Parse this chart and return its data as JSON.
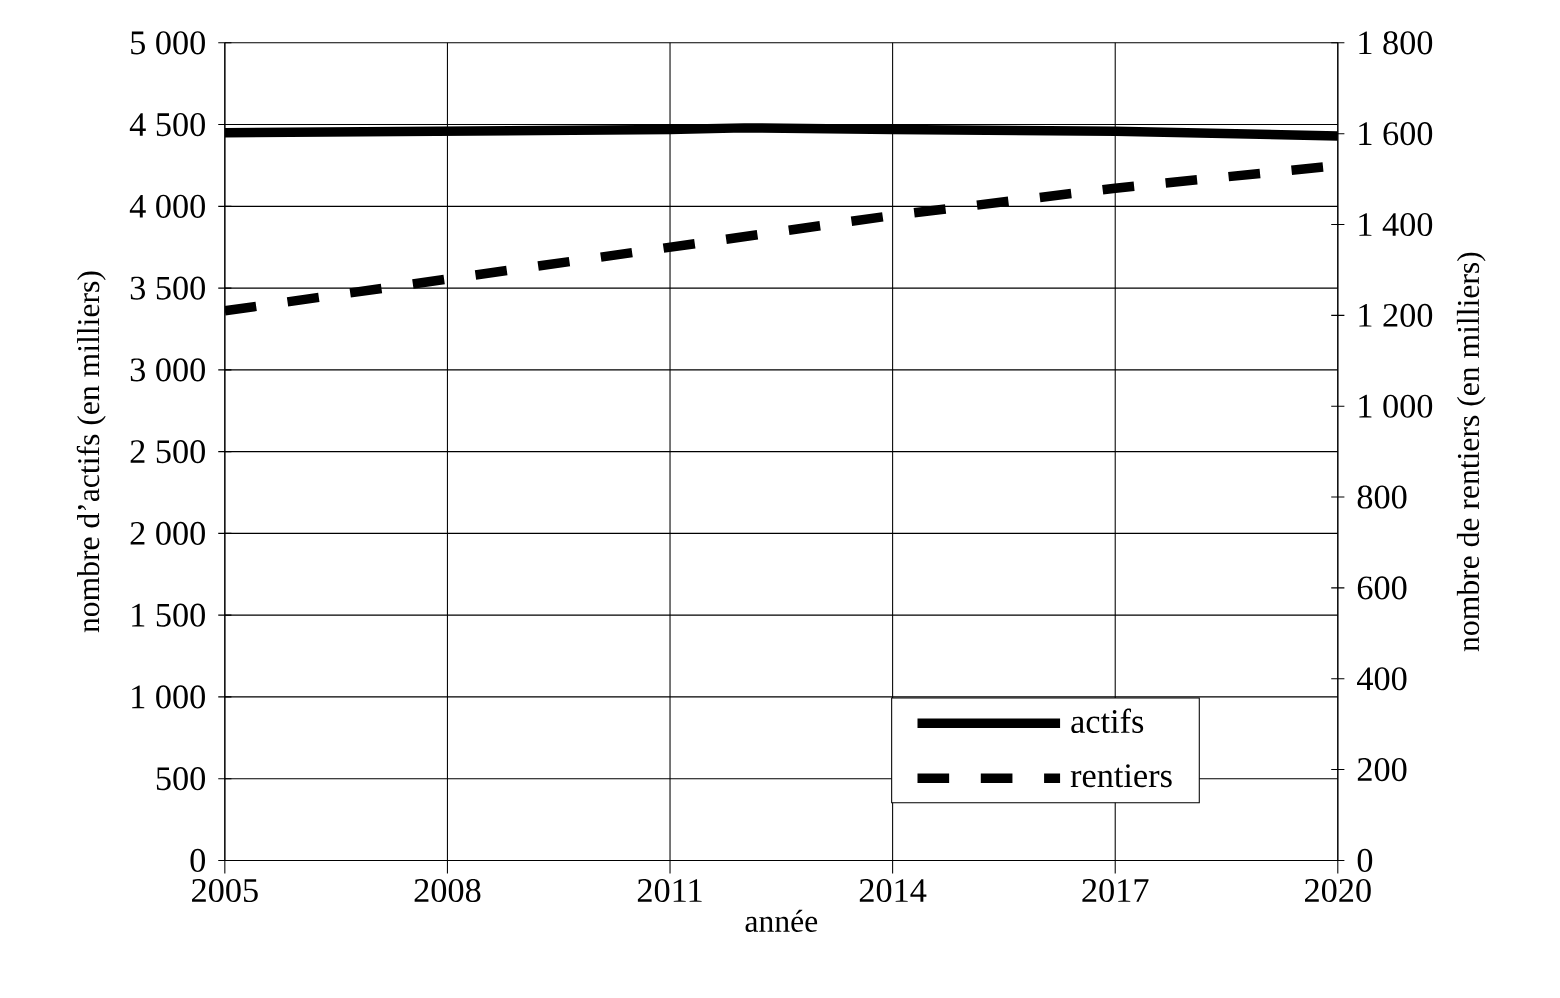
{
  "chart_data": {
    "type": "line",
    "xlabel": "année",
    "ylabel": "nombre d’actifs (en milliers)",
    "y2label": "nombre de rentiers (en milliers)",
    "xlim": [
      2005,
      2020
    ],
    "xticks": [
      2005,
      2008,
      2011,
      2014,
      2017,
      2020
    ],
    "ylim": [
      0,
      5000
    ],
    "yticks": [
      0,
      500,
      {
        "value": 1000,
        "label": "1 000"
      },
      {
        "value": 1500,
        "label": "1 500"
      },
      {
        "value": 2000,
        "label": "2 000"
      },
      {
        "value": 2500,
        "label": "2 500"
      },
      {
        "value": 3000,
        "label": "3 000"
      },
      {
        "value": 3500,
        "label": "3 500"
      },
      {
        "value": 4000,
        "label": "4 000"
      },
      {
        "value": 4500,
        "label": "4 500"
      },
      {
        "value": 5000,
        "label": "5 000"
      }
    ],
    "y2lim": [
      0,
      1800
    ],
    "y2ticks": [
      0,
      200,
      400,
      600,
      800,
      {
        "value": 1000,
        "label": "1 000"
      },
      {
        "value": 1200,
        "label": "1 200"
      },
      {
        "value": 1400,
        "label": "1 400"
      },
      {
        "value": 1600,
        "label": "1 600"
      },
      {
        "value": 1800,
        "label": "1 800"
      }
    ],
    "grid": true,
    "legend": "bottom right",
    "marker": "none",
    "series": [
      {
        "name": "actifs",
        "color": "#000000",
        "line_style": "solid",
        "x": [
          2005,
          2008,
          2011,
          2012,
          2014,
          2017,
          2020
        ],
        "values": [
          4450,
          4460,
          4470,
          4480,
          4470,
          4460,
          4430
        ]
      },
      {
        "name": "rentiers",
        "color": "#000000",
        "line_style": "dashed",
        "axis": "y2",
        "x": [
          2005,
          2008,
          2011,
          2014,
          2017,
          2020
        ],
        "values": [
          1210,
          1280,
          1350,
          1420,
          1480,
          1530
        ]
      }
    ]
  }
}
